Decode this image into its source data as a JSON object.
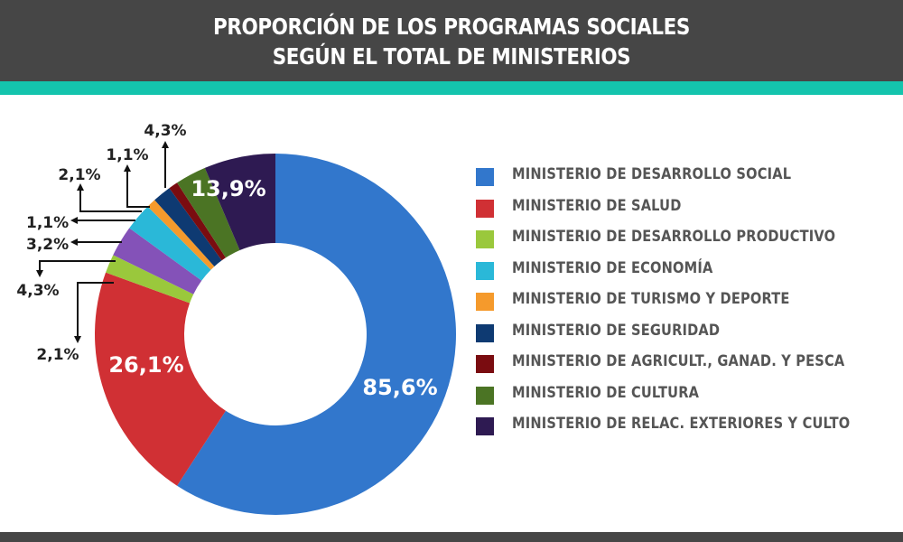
{
  "header": {
    "title_line1": "PROPORCIÓN DE LOS PROGRAMAS SOCIALES",
    "title_line2": "SEGÚN EL TOTAL DE MINISTERIOS"
  },
  "colors": {
    "header_bg": "#464646",
    "accent_teal": "#14c4ad"
  },
  "chart_data": {
    "type": "pie",
    "variant": "donut",
    "title": "PROPORCIÓN DE LOS PROGRAMAS SOCIALES SEGÚN EL TOTAL DE MINISTERIOS",
    "legend_position": "right",
    "slices": [
      {
        "name": "MINISTERIO DE DESARROLLO SOCIAL",
        "label": "85,6%",
        "value": 85.6,
        "color": "#3277cc",
        "in_legend": true,
        "label_style": "inside"
      },
      {
        "name": "MINISTERIO DE SALUD",
        "label": "26,1%",
        "value": 26.1,
        "color": "#d03034",
        "in_legend": true,
        "label_style": "inside"
      },
      {
        "name": "MINISTERIO DE DESARROLLO PRODUCTIVO",
        "label": "2,1%",
        "value": 2.1,
        "color": "#9ac83c",
        "in_legend": true,
        "label_style": "callout"
      },
      {
        "name": "",
        "label": "4,3%",
        "value": 4.3,
        "color": "#8452b8",
        "in_legend": false,
        "label_style": "callout"
      },
      {
        "name": "MINISTERIO DE ECONOMÍA",
        "label": "3,2%",
        "value": 3.2,
        "color": "#2ab8d8",
        "in_legend": true,
        "label_style": "callout"
      },
      {
        "name": "MINISTERIO DE TURISMO Y DEPORTE",
        "label": "1,1%",
        "value": 1.1,
        "color": "#f59a2c",
        "in_legend": true,
        "label_style": "callout"
      },
      {
        "name": "MINISTERIO DE SEGURIDAD",
        "label": "2,1%",
        "value": 2.1,
        "color": "#0e3a72",
        "in_legend": true,
        "label_style": "callout"
      },
      {
        "name": "MINISTERIO DE AGRICULT., GANAD. Y PESCA",
        "label": "1,1%",
        "value": 1.1,
        "color": "#7a0c10",
        "in_legend": true,
        "label_style": "callout"
      },
      {
        "name": "MINISTERIO DE CULTURA",
        "label": "4,3%",
        "value": 4.3,
        "color": "#4b7424",
        "in_legend": true,
        "label_style": "callout"
      },
      {
        "name": "MINISTERIO DE RELAC. EXTERIORES Y CULTO",
        "label": "13,9%",
        "value": 13.9,
        "color": "#2e1a52",
        "in_legend": true,
        "label_style": "inside"
      }
    ]
  }
}
